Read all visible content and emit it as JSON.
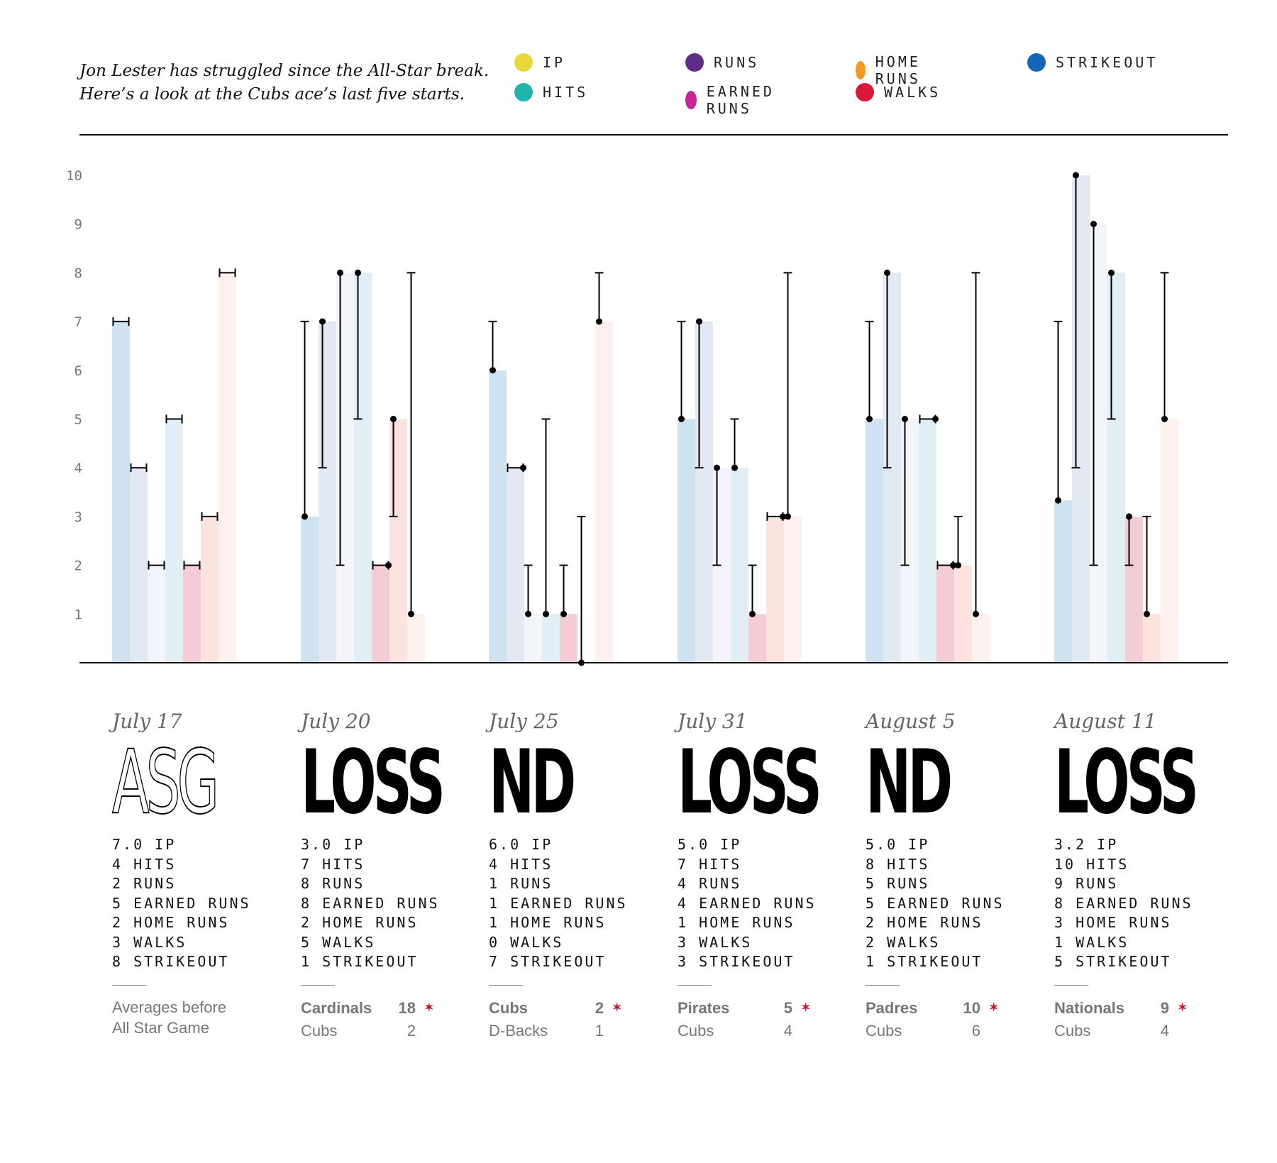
{
  "header": {
    "subtitle_line1": "Jon Lester has struggled since the All-Star break.",
    "subtitle_line2": "Here’s a look at the Cubs ace’s last five starts."
  },
  "legend": [
    {
      "label": "IP",
      "color": "#e8d83c"
    },
    {
      "label": "HITS",
      "color": "#1fb5ad"
    },
    {
      "label": "RUNS",
      "color": "#5e2d86"
    },
    {
      "label": "EARNED RUNS",
      "color": "#c8259a"
    },
    {
      "label": "HOME RUNS",
      "color": "#f39a22"
    },
    {
      "label": "WALKS",
      "color": "#d8193a"
    },
    {
      "label": "STRIKEOUT",
      "color": "#1266b5"
    }
  ],
  "chart_data": {
    "type": "bar",
    "ylim": [
      0,
      10
    ],
    "yticks": [
      "1",
      "2",
      "3",
      "4",
      "5",
      "6",
      "7",
      "8",
      "9",
      "10"
    ],
    "categories": [
      "July 17",
      "July 20",
      "July 25",
      "July 31",
      "August 5",
      "August 11"
    ],
    "bar_colors": [
      "#cfe2f0",
      "#e3e9f3",
      "#f3f5fa",
      "#e2eef6",
      "#f3ccd6",
      "#fbe3df",
      "#fdf1ef"
    ],
    "values": [
      [
        7,
        4,
        2,
        5,
        2,
        3,
        8
      ],
      [
        3,
        7,
        8,
        8,
        2,
        5,
        1
      ],
      [
        6,
        4,
        1,
        1,
        1,
        0,
        7
      ],
      [
        5,
        7,
        4,
        4,
        1,
        3,
        3
      ],
      [
        5,
        8,
        5,
        5,
        2,
        2,
        1
      ],
      [
        3.33,
        10,
        9,
        8,
        3,
        1,
        5
      ]
    ],
    "averages": [
      7,
      4,
      2,
      5,
      2,
      3,
      8
    ]
  },
  "games": [
    {
      "date": "July 17",
      "result": "ASG",
      "outline": true,
      "stats": [
        "7.0 IP",
        "4 HITS",
        "2 RUNS",
        "5 EARNED RUNS",
        "2 HOME RUNS",
        "3 WALKS",
        "8 STRIKEOUT"
      ],
      "note_line1": "Averages before",
      "note_line2": "All Star Game"
    },
    {
      "date": "July 20",
      "result": "LOSS",
      "outline": false,
      "stats": [
        "3.0 IP",
        "7 HITS",
        "8 RUNS",
        "8 EARNED RUNS",
        "2 HOME RUNS",
        "5 WALKS",
        "1 STRIKEOUT"
      ],
      "team1": "Cardinals",
      "score1": "18",
      "team2": "Cubs",
      "score2": "2"
    },
    {
      "date": "July 25",
      "result": "ND",
      "outline": false,
      "stats": [
        "6.0 IP",
        "4 HITS",
        "1 RUNS",
        "1 EARNED RUNS",
        "1 HOME RUNS",
        "0 WALKS",
        "7 STRIKEOUT"
      ],
      "team1": "Cubs",
      "score1": "2",
      "team2": "D-Backs",
      "score2": "1"
    },
    {
      "date": "July 31",
      "result": "LOSS",
      "outline": false,
      "stats": [
        "5.0 IP",
        "7 HITS",
        "4 RUNS",
        "4 EARNED RUNS",
        "1 HOME RUNS",
        "3 WALKS",
        "3 STRIKEOUT"
      ],
      "team1": "Pirates",
      "score1": "5",
      "team2": "Cubs",
      "score2": "4"
    },
    {
      "date": "August 5",
      "result": "ND",
      "outline": false,
      "stats": [
        "5.0 IP",
        "8 HITS",
        "5 RUNS",
        "5 EARNED RUNS",
        "2 HOME RUNS",
        "2 WALKS",
        "1 STRIKEOUT"
      ],
      "team1": "Padres",
      "score1": "10",
      "team2": "Cubs",
      "score2": "6"
    },
    {
      "date": "August 11",
      "result": "LOSS",
      "outline": false,
      "stats": [
        "3.2 IP",
        "10 HITS",
        "9 RUNS",
        "8 EARNED RUNS",
        "3 HOME RUNS",
        "1 WALKS",
        "5 STRIKEOUT"
      ],
      "team1": "Nationals",
      "score1": "9",
      "team2": "Cubs",
      "score2": "4"
    }
  ],
  "win_marker": "✶"
}
